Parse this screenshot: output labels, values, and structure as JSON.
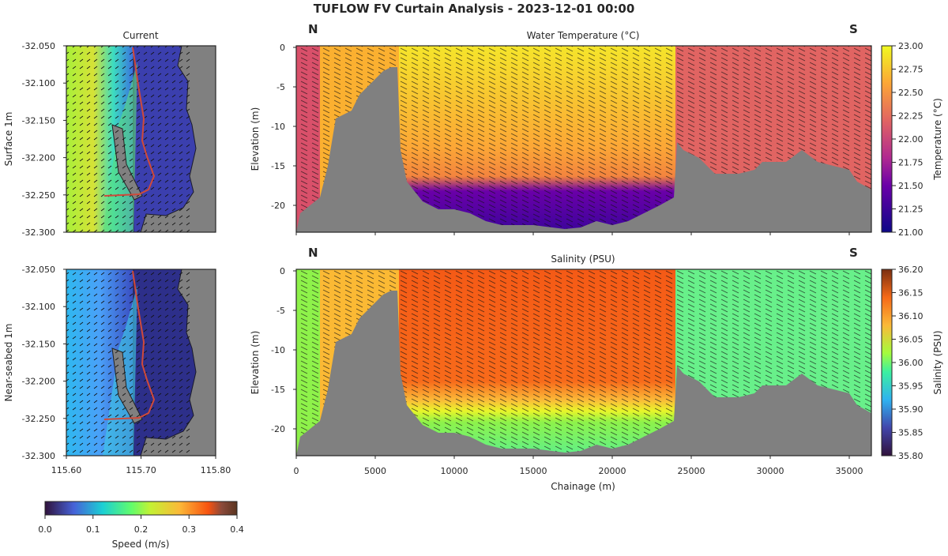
{
  "title": "TUFLOW FV Curtain Analysis - 2023-12-01 00:00",
  "maps": [
    {
      "title": "Current",
      "ylabel": "Surface 1m"
    },
    {
      "title": "",
      "ylabel": "Near-seabed 1m"
    }
  ],
  "map_axes": {
    "yticks": [
      "-32.050",
      "-32.100",
      "-32.150",
      "-32.200",
      "-32.250",
      "-32.300"
    ],
    "xticks": [
      "115.60",
      "115.70",
      "115.80"
    ]
  },
  "speed_colorbar": {
    "label": "Speed (m/s)",
    "ticks": [
      "0.0",
      "0.1",
      "0.2",
      "0.3",
      "0.4"
    ],
    "range": [
      0,
      0.4
    ]
  },
  "curtains": [
    {
      "title": "Water Temperature (°C)",
      "north": "N",
      "south": "S",
      "ylabel": "Elevation (m)",
      "colorbar": {
        "label": "Temperature (°C)",
        "ticks": [
          "23.00",
          "22.75",
          "22.50",
          "22.25",
          "22.00",
          "21.75",
          "21.50",
          "21.25",
          "21.00"
        ],
        "range": [
          21.0,
          23.0
        ]
      }
    },
    {
      "title": "Salinity (PSU)",
      "north": "N",
      "south": "S",
      "ylabel": "Elevation (m)",
      "xlabel": "Chainage (m)",
      "colorbar": {
        "label": "Salinity (PSU)",
        "ticks": [
          "36.20",
          "36.15",
          "36.10",
          "36.05",
          "36.00",
          "35.95",
          "35.90",
          "35.85",
          "35.80"
        ],
        "range": [
          35.8,
          36.2
        ]
      }
    }
  ],
  "chart_data": {
    "type": "heatmap",
    "xlabel": "Chainage (m)",
    "ylabel": "Elevation (m)",
    "xlim": [
      0,
      36400
    ],
    "ylim": [
      -23.4,
      0.2
    ],
    "xticks": [
      "0",
      "5000",
      "10000",
      "15000",
      "20000",
      "25000",
      "30000",
      "35000"
    ],
    "yticks": [
      "0",
      "-5",
      "-10",
      "-15",
      "-20"
    ],
    "bed_profile": [
      [
        0,
        -23.4
      ],
      [
        250,
        -21
      ],
      [
        1500,
        -19
      ],
      [
        2000,
        -15
      ],
      [
        2500,
        -9
      ],
      [
        3000,
        -8.5
      ],
      [
        3500,
        -8
      ],
      [
        4000,
        -6
      ],
      [
        4500,
        -5
      ],
      [
        5000,
        -4
      ],
      [
        5500,
        -3
      ],
      [
        6000,
        -2.5
      ],
      [
        6400,
        -2.5
      ],
      [
        6600,
        -13
      ],
      [
        7000,
        -17
      ],
      [
        8000,
        -19.5
      ],
      [
        9000,
        -20.5
      ],
      [
        10000,
        -20.5
      ],
      [
        11000,
        -21
      ],
      [
        12000,
        -22
      ],
      [
        13000,
        -22.5
      ],
      [
        15000,
        -22.5
      ],
      [
        17000,
        -23
      ],
      [
        18000,
        -22.8
      ],
      [
        19000,
        -22
      ],
      [
        20000,
        -22.5
      ],
      [
        21000,
        -22
      ],
      [
        22000,
        -21
      ],
      [
        23000,
        -20
      ],
      [
        23900,
        -19
      ],
      [
        24100,
        -12
      ],
      [
        24500,
        -13
      ],
      [
        25500,
        -14
      ],
      [
        26500,
        -16
      ],
      [
        28000,
        -16
      ],
      [
        29000,
        -15.5
      ],
      [
        29500,
        -14.5
      ],
      [
        31000,
        -14.5
      ],
      [
        32000,
        -13
      ],
      [
        33000,
        -14.5
      ],
      [
        34000,
        -15
      ],
      [
        35000,
        -15.5
      ],
      [
        35500,
        -17
      ],
      [
        36400,
        -18
      ]
    ]
  }
}
